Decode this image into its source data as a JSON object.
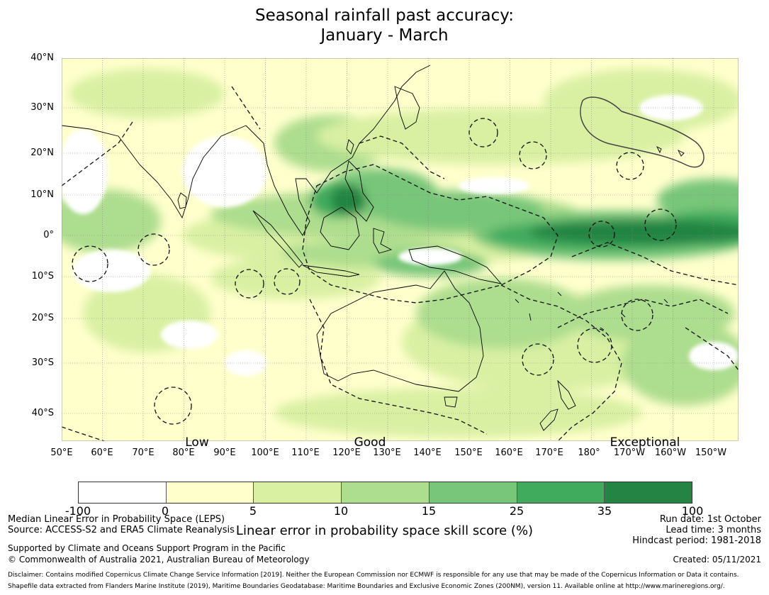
{
  "title": {
    "line1": "Seasonal rainfall past accuracy:",
    "line2": "January - March"
  },
  "axes": {
    "lat_labels": [
      "40°N",
      "30°N",
      "20°N",
      "10°N",
      "0°",
      "10°S",
      "20°S",
      "30°S",
      "40°S"
    ],
    "lon_labels": [
      "50°E",
      "60°E",
      "70°E",
      "80°E",
      "90°E",
      "100°E",
      "110°E",
      "120°E",
      "130°E",
      "140°E",
      "150°E",
      "160°E",
      "170°E",
      "180°",
      "170°W",
      "160°W",
      "150°W"
    ]
  },
  "categories": {
    "low": "Low",
    "good": "Good",
    "exceptional": "Exceptional"
  },
  "legend": {
    "title": "Linear error in probability space skill score (%)",
    "ticks": [
      "-100",
      "0",
      "5",
      "10",
      "15",
      "25",
      "35",
      "100"
    ],
    "colors": [
      "#ffffff",
      "#ffffcc",
      "#d9f0a3",
      "#addd8e",
      "#78c679",
      "#41ab5d",
      "#238443"
    ]
  },
  "footer": {
    "line1": "Median Linear Error in Probability Space (LEPS)",
    "line2": "Source: ACCESS-S2 and ERA5 Climate Reanalysis",
    "line3": "Supported by Climate and Oceans Support Program in the Pacific",
    "line4": "© Commonwealth of Australia 2021, Australian Bureau of Meteorology",
    "run_date": "Run date: 1st October",
    "lead_time": "Lead time: 3 months",
    "hindcast": "Hindcast period: 1981-2018",
    "created": "Created: 05/11/2021",
    "disclaimer": "Disclaimer: Contains modified Copernicus Climate Change Service Information [2019]. Neither the European Commission nor ECMWF is responsible for any use that may be made of the Copernicus Information or Data it contains.",
    "shapefile": "Shapefile data extracted from Flanders Marine Institute (2019), Maritime Boundaries Geodatabase: Maritime Boundaries and Exclusive Economic Zones (200NM), version 11. Available online at http://www.marineregions.org/."
  }
}
